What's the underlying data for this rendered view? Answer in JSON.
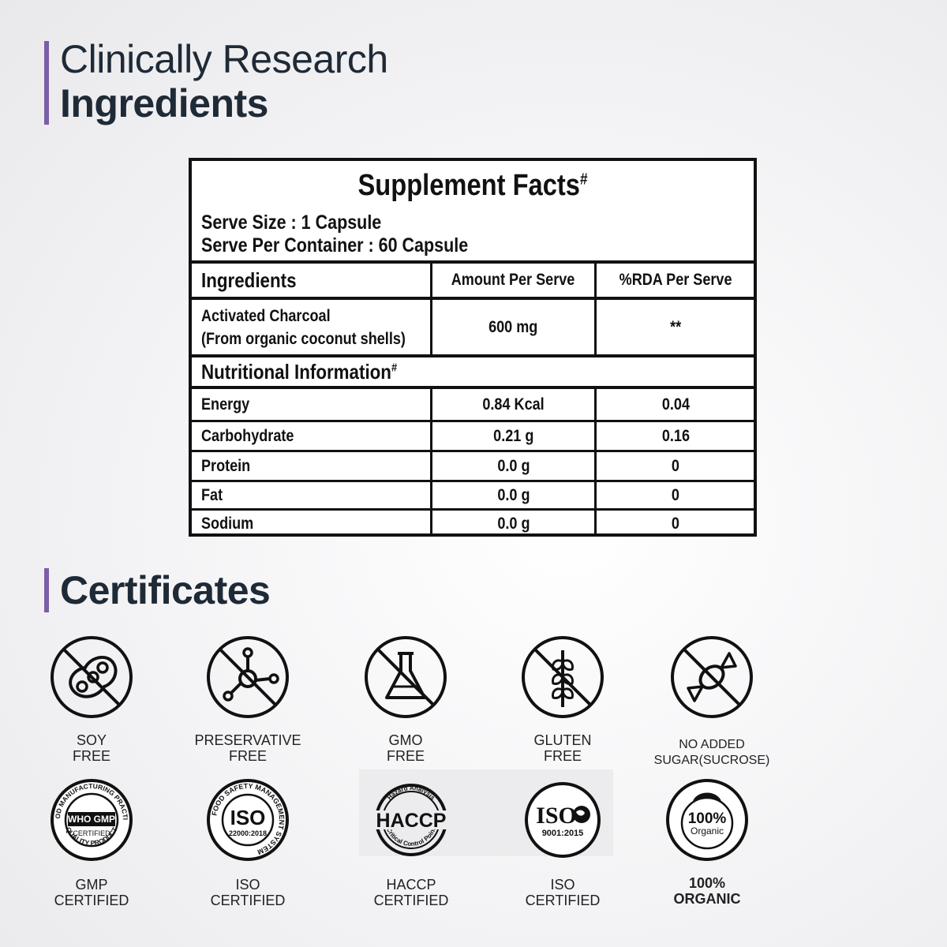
{
  "heading": {
    "line1": "Clinically Research",
    "line2": "Ingredients"
  },
  "facts": {
    "title": "Supplement Facts",
    "title_mark": "#",
    "serve_size": "Serve Size : 1 Capsule",
    "serve_per_container": "Serve Per Container : 60 Capsule",
    "columns": [
      "Ingredients",
      "Amount Per Serve",
      "%RDA Per Serve"
    ],
    "ingredient": {
      "name_line1": "Activated Charcoal",
      "name_line2": "(From organic coconut shells)",
      "amount": "600 mg",
      "rda": "**"
    },
    "nutrition_title": "Nutritional Information",
    "nutrition_mark": "#",
    "nutrition": [
      {
        "name": "Energy",
        "amount": "0.84 Kcal",
        "rda": "0.04"
      },
      {
        "name": "Carbohydrate",
        "amount": "0.21 g",
        "rda": "0.16"
      },
      {
        "name": "Protein",
        "amount": "0.0 g",
        "rda": "0"
      },
      {
        "name": "Fat",
        "amount": "0.0 g",
        "rda": "0"
      },
      {
        "name": "Sodium",
        "amount": "0.0 g",
        "rda": "0"
      }
    ]
  },
  "certificates": {
    "title": "Certificates",
    "free": [
      {
        "icon": "soy-free-icon",
        "line1": "SOY",
        "line2": "FREE"
      },
      {
        "icon": "preservative-free-icon",
        "line1": "PRESERVATIVE",
        "line2": "FREE"
      },
      {
        "icon": "gmo-free-icon",
        "line1": "GMO",
        "line2": "FREE"
      },
      {
        "icon": "gluten-free-icon",
        "line1": "GLUTEN",
        "line2": "FREE"
      },
      {
        "icon": "no-sugar-icon",
        "line1": "NO ADDED",
        "line2": "SUGAR(SUCROSE)"
      }
    ],
    "certified": [
      {
        "icon": "gmp-seal-icon",
        "line1": "GMP",
        "line2": "CERTIFIED",
        "seal_main": "WHO GMP",
        "seal_sub": "CERTIFIED",
        "seal_ring_top": "GOOD MANUFACTURING PRACTICE",
        "seal_ring_bottom": "QUALITY PRODUCT"
      },
      {
        "icon": "iso-22000-seal-icon",
        "line1": "ISO",
        "line2": "CERTIFIED",
        "seal_main": "ISO",
        "seal_sub": "22000:2018",
        "seal_ring": "FOOD SAFETY MANAGEMENT SYSTEM"
      },
      {
        "icon": "haccp-seal-icon",
        "line1": "HACCP",
        "line2": "CERTIFIED",
        "seal_main": "HACCP",
        "seal_ring_top": "Hazard Analysis",
        "seal_ring_bottom": "Critical Control Point"
      },
      {
        "icon": "iso-9001-seal-icon",
        "line1": "ISO",
        "line2": "CERTIFIED",
        "seal_main": "ISO",
        "seal_sub": "9001:2015"
      },
      {
        "icon": "organic-seal-icon",
        "line1": "100%",
        "line2": "ORGANIC",
        "seal_main": "100%",
        "seal_sub": "Organic"
      }
    ]
  }
}
